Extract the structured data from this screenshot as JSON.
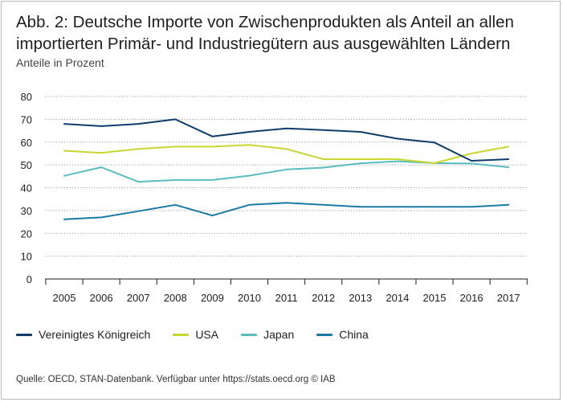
{
  "header": {
    "title": "Abb. 2: Deutsche Importe von Zwischenprodukten als Anteil an allen importierten Primär- und Industriegütern aus ausgewählten Ländern",
    "subtitle": "Anteile in Prozent"
  },
  "footer": {
    "source": "Quelle: OECD, STAN-Datenbank. Verfügbar unter https://stats.oecd.org © IAB"
  },
  "chart_data": {
    "type": "line",
    "title": "Abb. 2: Deutsche Importe von Zwischenprodukten als Anteil an allen importierten Primär- und Industriegütern aus ausgewählten Ländern",
    "ylabel": "Anteile in Prozent",
    "xlabel": "",
    "x": [
      "2005",
      "2006",
      "2007",
      "2008",
      "2009",
      "2010",
      "2011",
      "2012",
      "2013",
      "2014",
      "2015",
      "2016",
      "2017"
    ],
    "yticks": [
      0,
      10,
      20,
      30,
      40,
      50,
      60,
      70,
      80
    ],
    "ylim": [
      0,
      80
    ],
    "grid": "horizontal dotted",
    "legend_position": "bottom",
    "series": [
      {
        "name": "Vereinigtes Königreich",
        "color": "#0e3d6b",
        "values": [
          68,
          67,
          68,
          70,
          62.5,
          64.5,
          66,
          65.3,
          64.5,
          61.5,
          59.8,
          51.8,
          52.5
        ]
      },
      {
        "name": "USA",
        "color": "#c9d632",
        "values": [
          56.2,
          55.3,
          57,
          58,
          58,
          58.8,
          57,
          52.5,
          52.5,
          52.5,
          50.8,
          55,
          58
        ]
      },
      {
        "name": "Japan",
        "color": "#5bbcbf",
        "values": [
          45.2,
          49,
          42.6,
          43.4,
          43.4,
          45.3,
          48,
          48.8,
          50.7,
          51.6,
          50.8,
          50.6,
          49
        ]
      },
      {
        "name": "China",
        "color": "#1a7aa6",
        "values": [
          26.2,
          27,
          29.7,
          32.5,
          27.8,
          32.5,
          33.4,
          32.5,
          31.6,
          31.6,
          31.6,
          31.6,
          32.5
        ]
      }
    ]
  }
}
